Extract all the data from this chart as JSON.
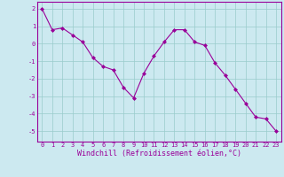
{
  "x": [
    0,
    1,
    2,
    3,
    4,
    5,
    6,
    7,
    8,
    9,
    10,
    11,
    12,
    13,
    14,
    15,
    16,
    17,
    18,
    19,
    20,
    21,
    22,
    23
  ],
  "y": [
    2.0,
    0.8,
    0.9,
    0.5,
    0.1,
    -0.8,
    -1.3,
    -1.5,
    -2.5,
    -3.1,
    -1.7,
    -0.7,
    0.1,
    0.8,
    0.8,
    0.1,
    -0.1,
    -1.1,
    -1.8,
    -2.6,
    -3.4,
    -4.2,
    -4.3,
    -5.0
  ],
  "line_color": "#990099",
  "marker": "D",
  "marker_size": 2.0,
  "bg_color": "#cce9f0",
  "grid_color": "#99cccc",
  "xlabel": "Windchill (Refroidissement éolien,°C)",
  "ylabel": "",
  "ylim": [
    -5.6,
    2.4
  ],
  "xlim": [
    -0.5,
    23.5
  ],
  "yticks": [
    2,
    1,
    0,
    -1,
    -2,
    -3,
    -4,
    -5
  ],
  "xticks": [
    0,
    1,
    2,
    3,
    4,
    5,
    6,
    7,
    8,
    9,
    10,
    11,
    12,
    13,
    14,
    15,
    16,
    17,
    18,
    19,
    20,
    21,
    22,
    23
  ],
  "tick_color": "#990099",
  "tick_fontsize": 5.0,
  "xlabel_fontsize": 6.0,
  "label_color": "#990099",
  "line_width": 0.8
}
